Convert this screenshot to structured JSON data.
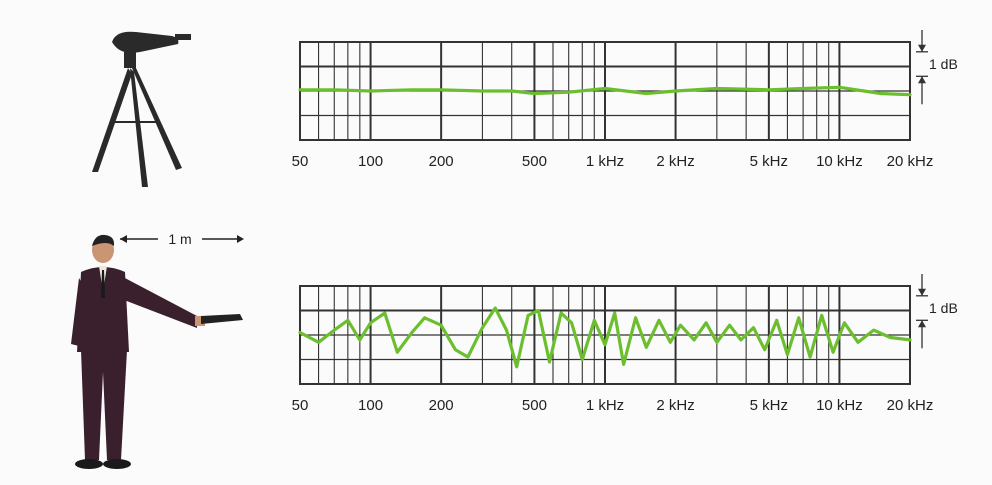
{
  "colors": {
    "trace": "#6bbf2e",
    "grid": "#333333",
    "suit": "#3a1f2c",
    "tripod": "#2a2a2a"
  },
  "icons": {
    "top_illustration": "microphone-on-tripod-icon",
    "bottom_illustration": "person-holding-microphone-icon"
  },
  "distance_label": "1 m",
  "chart_data": [
    {
      "type": "line",
      "x_scale": "log",
      "xlim": [
        50,
        20000
      ],
      "ylim": [
        -2,
        2
      ],
      "x_ticks": [
        50,
        100,
        200,
        500,
        1000,
        2000,
        5000,
        10000,
        20000
      ],
      "x_tick_labels": [
        "50",
        "100",
        "200",
        "500",
        "1 kHz",
        "2 kHz",
        "5 kHz",
        "10 kHz",
        "20 kHz"
      ],
      "scale_marker": "1 dB",
      "grid": true,
      "x": [
        50,
        70,
        100,
        150,
        200,
        300,
        400,
        500,
        700,
        1000,
        1500,
        2000,
        3000,
        5000,
        7000,
        10000,
        15000,
        20000
      ],
      "y": [
        0.05,
        0.05,
        0.0,
        0.05,
        0.05,
        0.0,
        0.0,
        -0.1,
        -0.05,
        0.1,
        -0.1,
        0.0,
        0.1,
        0.05,
        0.1,
        0.15,
        -0.1,
        -0.15
      ]
    },
    {
      "type": "line",
      "x_scale": "log",
      "xlim": [
        50,
        20000
      ],
      "ylim": [
        -2,
        2
      ],
      "x_ticks": [
        50,
        100,
        200,
        500,
        1000,
        2000,
        5000,
        10000,
        20000
      ],
      "x_tick_labels": [
        "50",
        "100",
        "200",
        "500",
        "1 kHz",
        "2 kHz",
        "5 kHz",
        "10 kHz",
        "20 kHz"
      ],
      "scale_marker": "1 dB",
      "grid": true,
      "x": [
        50,
        60,
        70,
        80,
        90,
        100,
        115,
        130,
        150,
        170,
        200,
        230,
        260,
        300,
        340,
        380,
        420,
        470,
        520,
        580,
        650,
        720,
        800,
        900,
        1000,
        1100,
        1200,
        1350,
        1500,
        1700,
        1900,
        2100,
        2400,
        2700,
        3000,
        3400,
        3800,
        4300,
        4800,
        5400,
        6000,
        6700,
        7500,
        8400,
        9400,
        10500,
        12000,
        14000,
        16500,
        20000
      ],
      "y": [
        0.1,
        -0.3,
        0.2,
        0.6,
        -0.2,
        0.5,
        0.9,
        -0.7,
        0.1,
        0.7,
        0.4,
        -0.6,
        -0.9,
        0.3,
        1.1,
        0.2,
        -1.3,
        0.8,
        1.0,
        -1.1,
        0.9,
        0.5,
        -1.0,
        0.6,
        -0.4,
        0.9,
        -1.2,
        0.7,
        -0.5,
        0.6,
        -0.3,
        0.4,
        -0.2,
        0.5,
        -0.3,
        0.4,
        -0.2,
        0.3,
        -0.6,
        0.6,
        -0.8,
        0.7,
        -0.9,
        0.8,
        -0.7,
        0.5,
        -0.3,
        0.2,
        -0.1,
        -0.2
      ]
    }
  ]
}
